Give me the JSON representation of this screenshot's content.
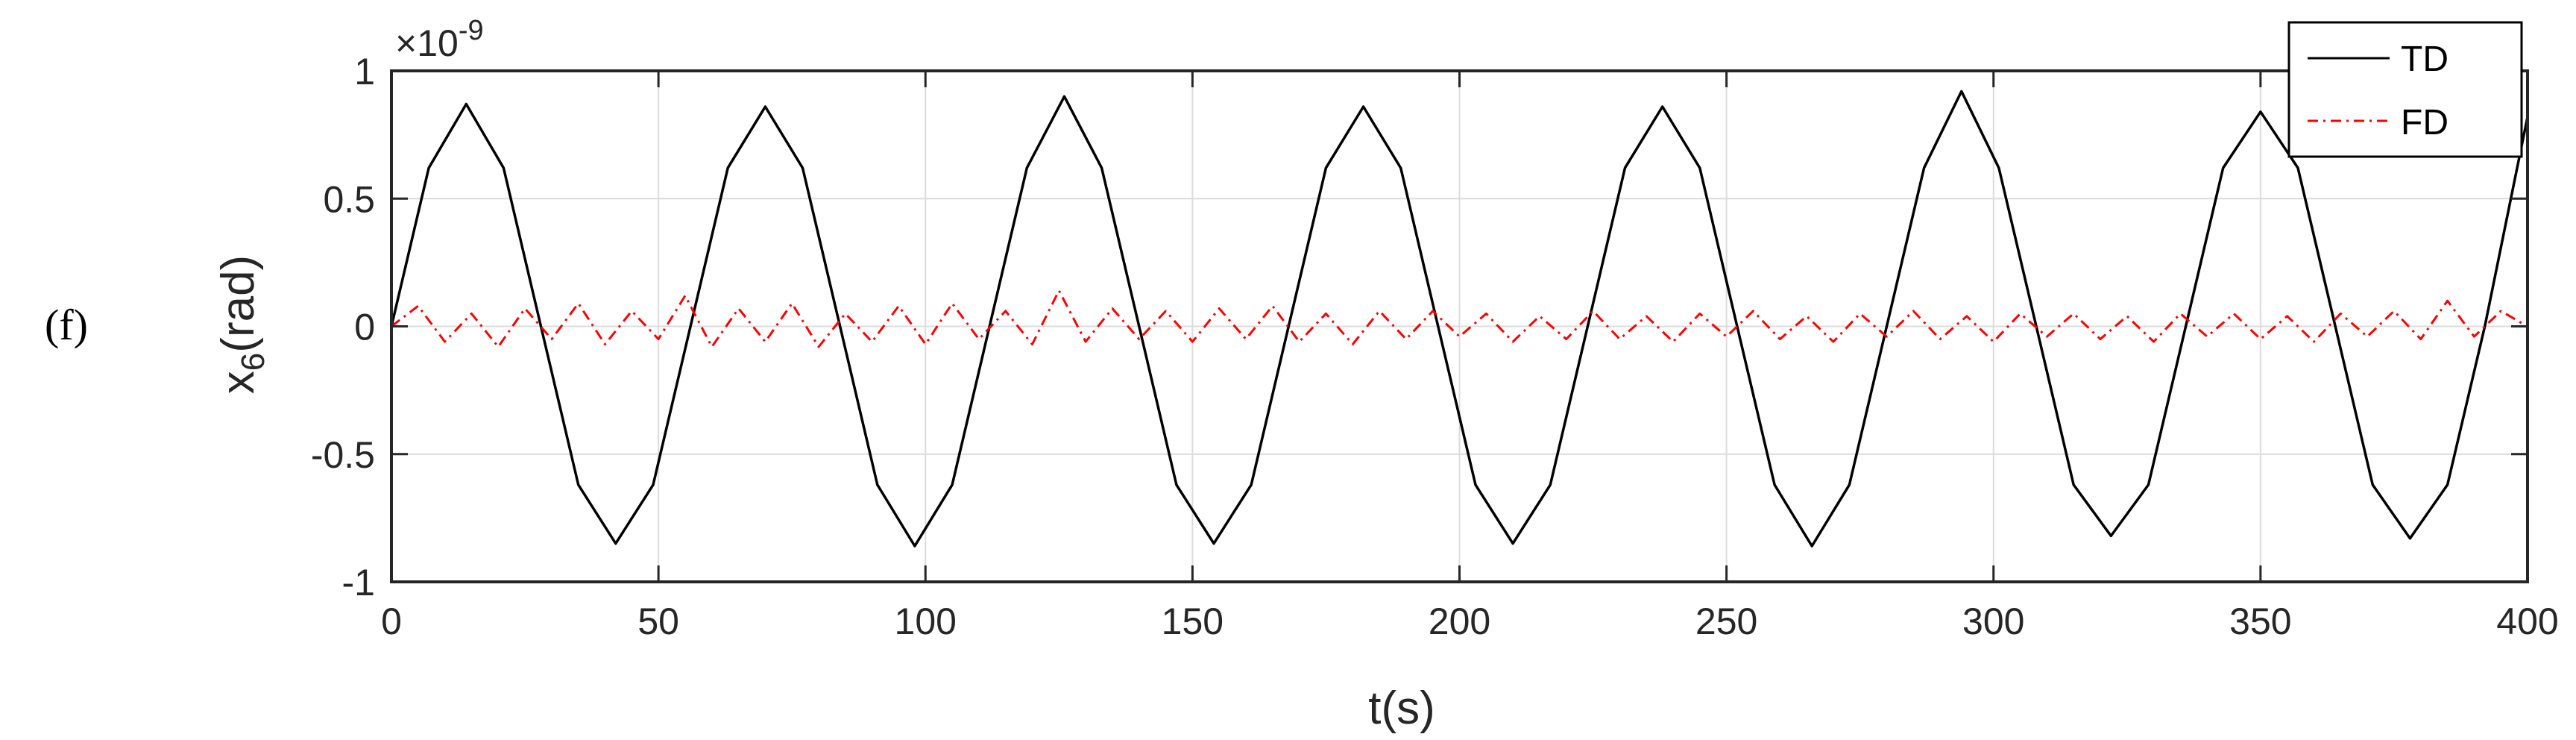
{
  "panel_label": "(f)",
  "chart_data": {
    "type": "line",
    "xlabel": "t(s)",
    "ylabel": {
      "base": "x",
      "subscript": "6",
      "rest": "(rad)"
    },
    "exponent_label": {
      "base": "×10",
      "power": "-9"
    },
    "xlim": [
      0,
      400
    ],
    "ylim": [
      -1,
      1
    ],
    "x_ticks": [
      0,
      50,
      100,
      150,
      200,
      250,
      300,
      350,
      400
    ],
    "x_tick_labels": [
      "0",
      "50",
      "100",
      "150",
      "200",
      "250",
      "300",
      "350",
      "400"
    ],
    "y_ticks": [
      -1,
      -0.5,
      0,
      0.5,
      1
    ],
    "y_tick_labels": [
      "-1",
      "-0.5",
      "0",
      "0.5",
      "1"
    ],
    "grid": true,
    "legend_position": "top-right",
    "series": [
      {
        "name": "TD",
        "color": "#000000",
        "style": "solid",
        "x": [
          0,
          7,
          14,
          21,
          28,
          35,
          42,
          49,
          56,
          63,
          70,
          77,
          84,
          91,
          98,
          105,
          112,
          119,
          126,
          133,
          140,
          147,
          154,
          161,
          168,
          175,
          182,
          189,
          196,
          203,
          210,
          217,
          224,
          231,
          238,
          245,
          252,
          259,
          266,
          273,
          280,
          287,
          294,
          301,
          308,
          315,
          322,
          329,
          336,
          343,
          350,
          357,
          364,
          371,
          378,
          385,
          392,
          400
        ],
        "y": [
          0,
          0.62,
          0.87,
          0.62,
          0,
          -0.62,
          -0.85,
          -0.62,
          0,
          0.62,
          0.86,
          0.62,
          0,
          -0.62,
          -0.86,
          -0.62,
          0,
          0.62,
          0.9,
          0.62,
          0,
          -0.62,
          -0.85,
          -0.62,
          0,
          0.62,
          0.86,
          0.62,
          0,
          -0.62,
          -0.85,
          -0.62,
          0,
          0.62,
          0.86,
          0.62,
          0,
          -0.62,
          -0.86,
          -0.62,
          0,
          0.62,
          0.92,
          0.62,
          0,
          -0.62,
          -0.82,
          -0.62,
          0,
          0.62,
          0.84,
          0.62,
          0,
          -0.62,
          -0.83,
          -0.62,
          0,
          0.82
        ]
      },
      {
        "name": "FD",
        "color": "#ff0000",
        "style": "dash-dot",
        "x": [
          0,
          5,
          10,
          15,
          20,
          25,
          30,
          35,
          40,
          45,
          50,
          55,
          60,
          65,
          70,
          75,
          80,
          85,
          90,
          95,
          100,
          105,
          110,
          115,
          120,
          125,
          130,
          135,
          140,
          145,
          150,
          155,
          160,
          165,
          170,
          175,
          180,
          185,
          190,
          195,
          200,
          205,
          210,
          215,
          220,
          225,
          230,
          235,
          240,
          245,
          250,
          255,
          260,
          265,
          270,
          275,
          280,
          285,
          290,
          295,
          300,
          305,
          310,
          315,
          320,
          325,
          330,
          335,
          340,
          345,
          350,
          355,
          360,
          365,
          370,
          375,
          380,
          385,
          390,
          395,
          400
        ],
        "y": [
          0,
          0.08,
          -0.06,
          0.05,
          -0.08,
          0.07,
          -0.05,
          0.09,
          -0.07,
          0.06,
          -0.05,
          0.12,
          -0.08,
          0.07,
          -0.06,
          0.09,
          -0.08,
          0.05,
          -0.06,
          0.08,
          -0.07,
          0.09,
          -0.05,
          0.06,
          -0.07,
          0.14,
          -0.06,
          0.07,
          -0.05,
          0.06,
          -0.06,
          0.07,
          -0.05,
          0.08,
          -0.06,
          0.05,
          -0.07,
          0.06,
          -0.05,
          0.06,
          -0.04,
          0.05,
          -0.06,
          0.04,
          -0.05,
          0.06,
          -0.05,
          0.04,
          -0.06,
          0.05,
          -0.04,
          0.06,
          -0.05,
          0.04,
          -0.06,
          0.05,
          -0.04,
          0.06,
          -0.05,
          0.04,
          -0.06,
          0.05,
          -0.04,
          0.05,
          -0.05,
          0.04,
          -0.06,
          0.05,
          -0.04,
          0.05,
          -0.05,
          0.04,
          -0.06,
          0.05,
          -0.04,
          0.06,
          -0.05,
          0.1,
          -0.04,
          0.06,
          0
        ]
      }
    ]
  }
}
